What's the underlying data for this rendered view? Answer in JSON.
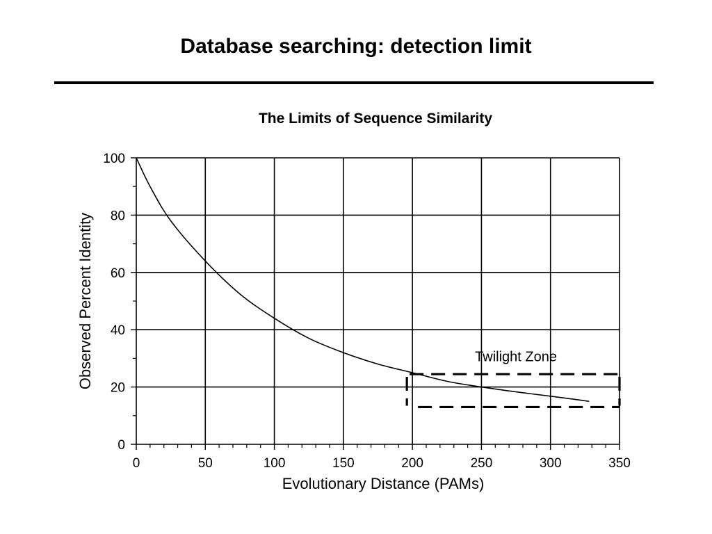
{
  "slide": {
    "title": "Database searching: detection limit"
  },
  "chart_data": {
    "type": "line",
    "title": "The Limits of Sequence Similarity",
    "xlabel": "Evolutionary Distance (PAMs)",
    "ylabel": "Observed Percent Identity",
    "xlim": [
      0,
      350
    ],
    "ylim": [
      0,
      100
    ],
    "xticks": [
      0,
      50,
      100,
      150,
      200,
      250,
      300,
      350
    ],
    "yticks": [
      0,
      20,
      40,
      60,
      80,
      100
    ],
    "grid": true,
    "series": [
      {
        "x": [
          0,
          10,
          25,
          50,
          75,
          100,
          125,
          150,
          175,
          200,
          225,
          250,
          275,
          300,
          328
        ],
        "y": [
          100,
          90,
          78,
          64,
          52.5,
          44,
          37,
          32,
          28,
          25,
          22,
          20,
          18.3,
          16.8,
          15
        ]
      }
    ],
    "annotations": [
      {
        "text": "Twilight Zone",
        "x": 275,
        "y": 29
      }
    ],
    "highlight_box": {
      "x": [
        198,
        350
      ],
      "y": [
        13,
        24.5
      ],
      "style": "dashed"
    }
  }
}
